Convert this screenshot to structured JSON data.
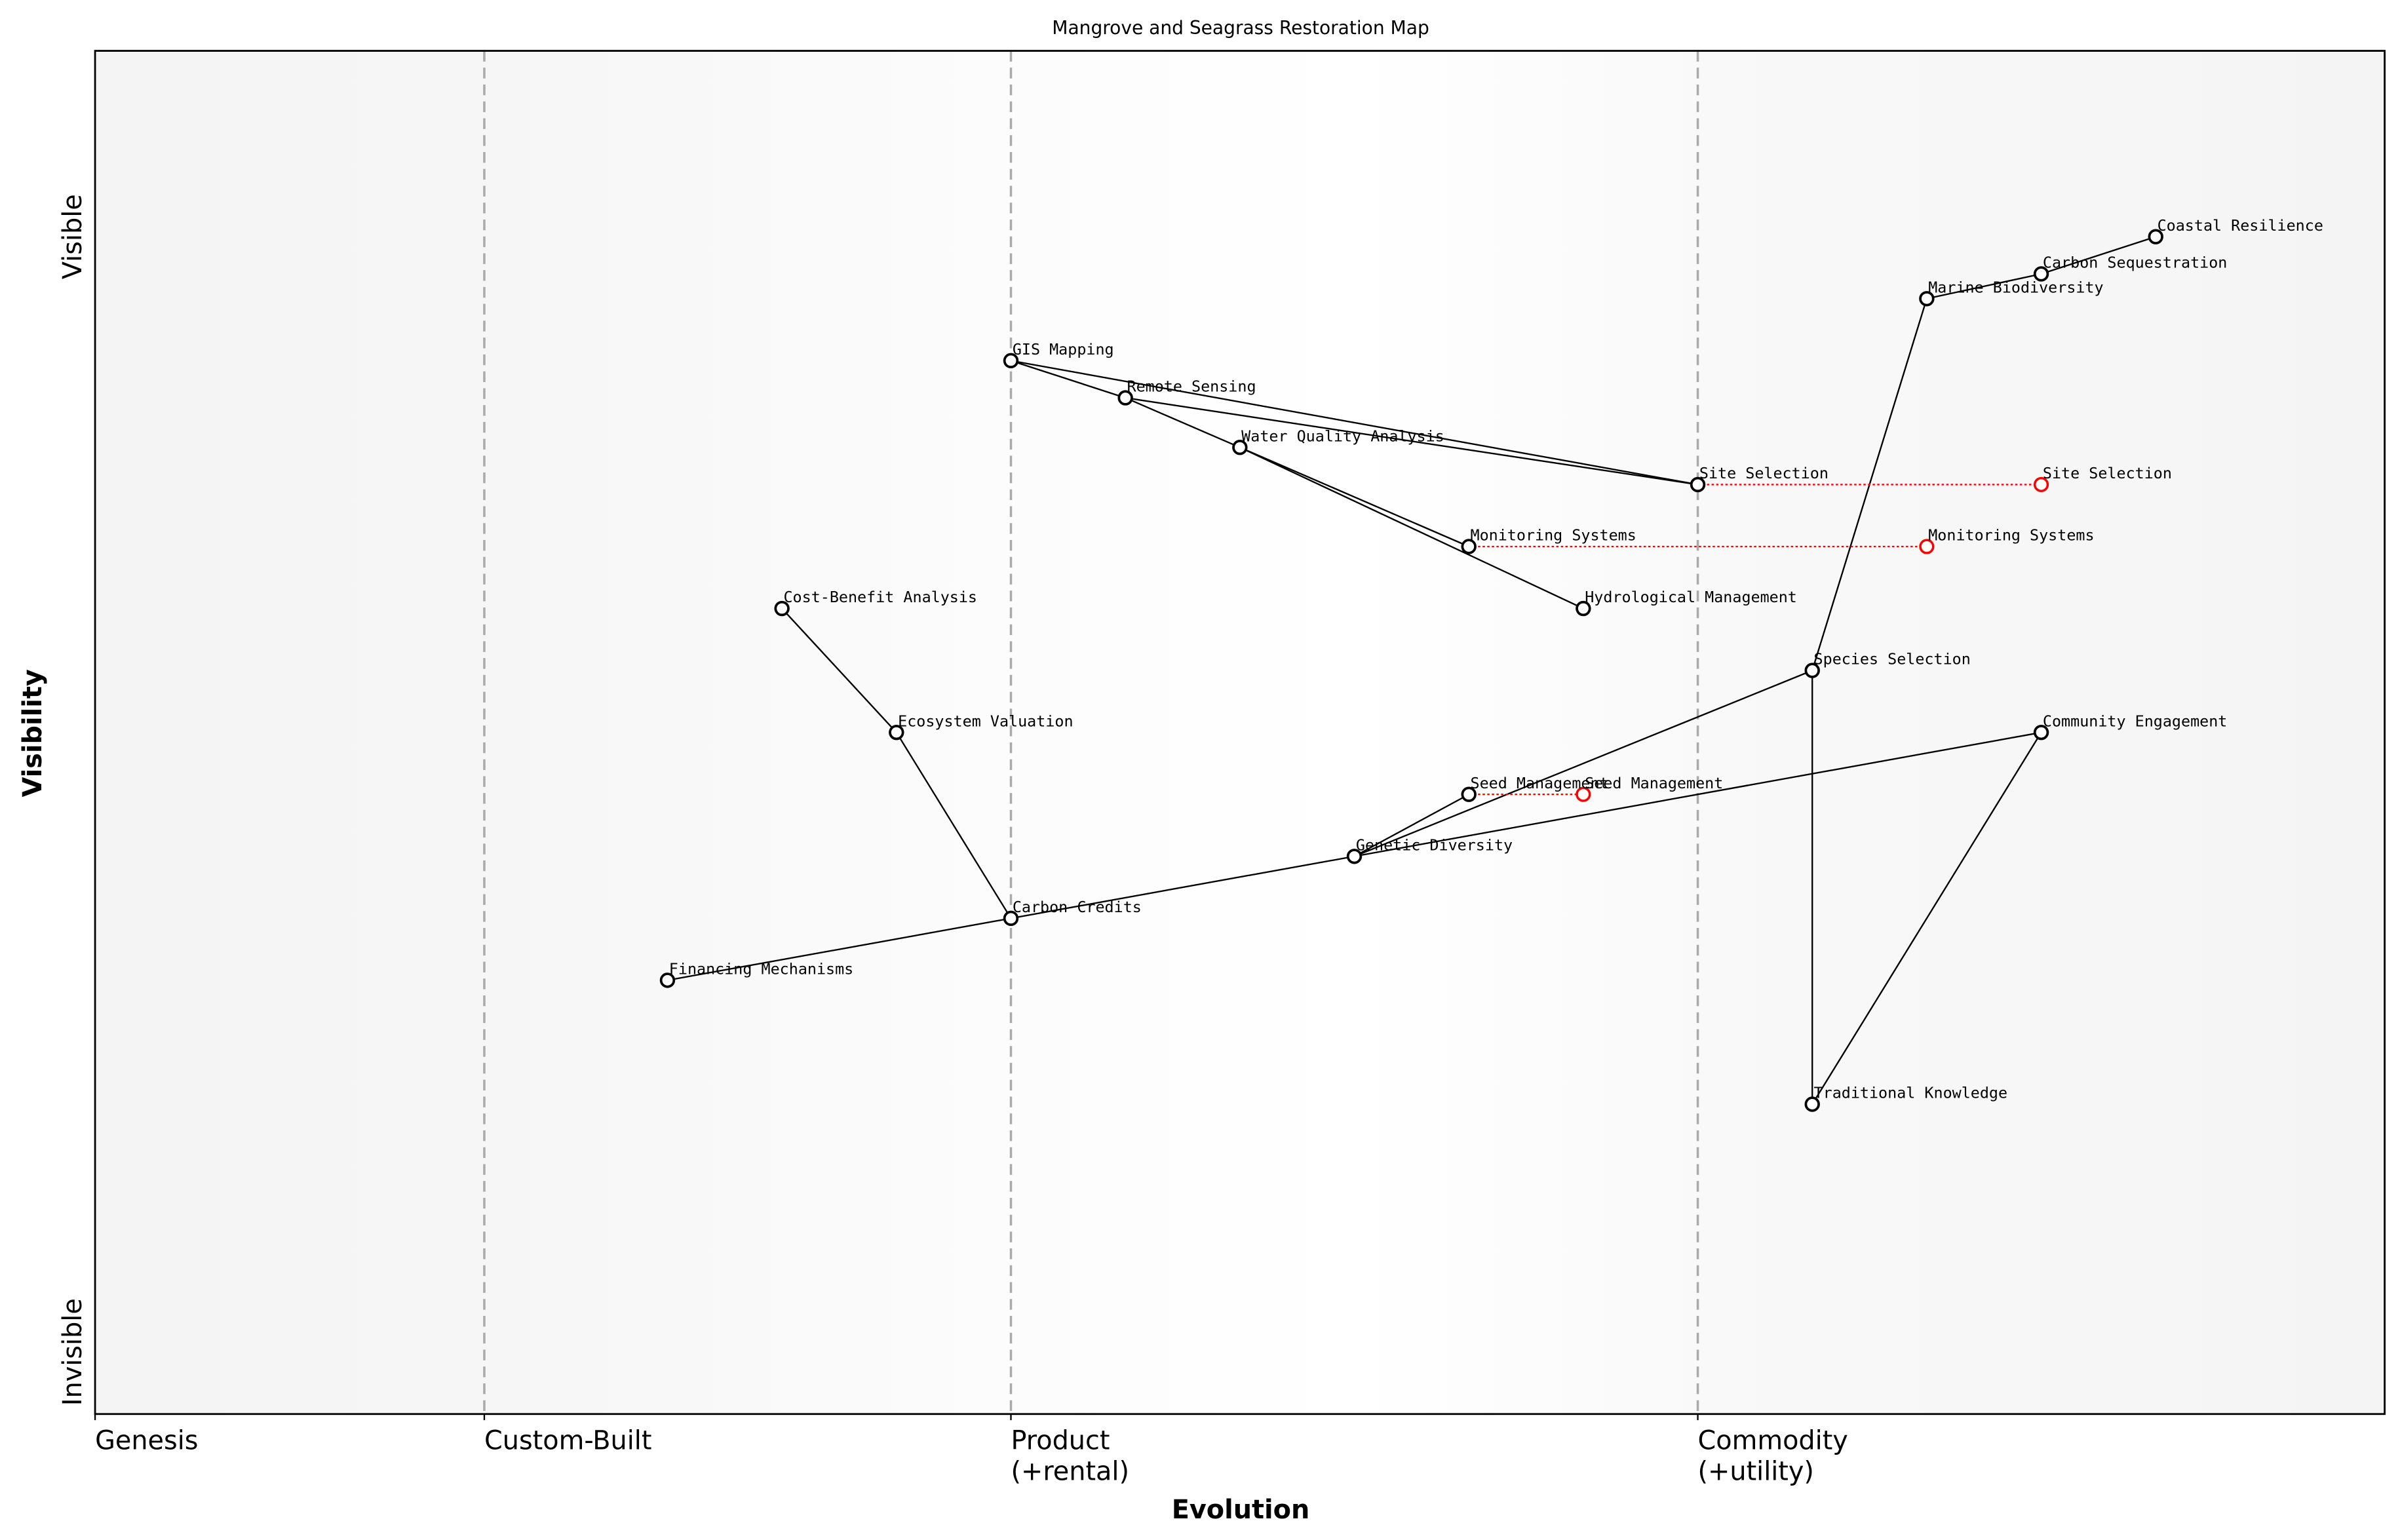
{
  "title": "Mangrove and Seagrass Restoration Map",
  "chart_data": {
    "type": "wardley-map",
    "title": "Mangrove and Seagrass Restoration Map",
    "xlabel": "Evolution",
    "ylabel": "Visibility",
    "xlim": [
      0,
      1
    ],
    "ylim": [
      -0.05,
      1.05
    ],
    "x_ticks": [
      {
        "value": 0,
        "label": [
          "Genesis"
        ]
      },
      {
        "value": 0.17,
        "label": [
          "Custom-Built"
        ]
      },
      {
        "value": 0.4,
        "label": [
          "Product",
          "(+rental)"
        ]
      },
      {
        "value": 0.7,
        "label": [
          "Commodity",
          "(+utility)"
        ]
      }
    ],
    "y_ticks": [
      {
        "value": 0.9,
        "label": "Visible"
      },
      {
        "value": 0.0,
        "label": "Invisible"
      }
    ],
    "stage_dividers": [
      0.17,
      0.4,
      0.7
    ],
    "components": [
      {
        "name": "Coastal Resilience",
        "x": 0.9,
        "y": 0.9
      },
      {
        "name": "Carbon Sequestration",
        "x": 0.85,
        "y": 0.87
      },
      {
        "name": "Marine Biodiversity",
        "x": 0.8,
        "y": 0.85
      },
      {
        "name": "GIS Mapping",
        "x": 0.4,
        "y": 0.8
      },
      {
        "name": "Remote Sensing",
        "x": 0.45,
        "y": 0.77
      },
      {
        "name": "Water Quality Analysis",
        "x": 0.5,
        "y": 0.73
      },
      {
        "name": "Site Selection",
        "x": 0.7,
        "y": 0.7
      },
      {
        "name": "Monitoring Systems",
        "x": 0.6,
        "y": 0.65
      },
      {
        "name": "Cost-Benefit Analysis",
        "x": 0.3,
        "y": 0.6
      },
      {
        "name": "Hydrological Management",
        "x": 0.65,
        "y": 0.6
      },
      {
        "name": "Species Selection",
        "x": 0.75,
        "y": 0.55
      },
      {
        "name": "Ecosystem Valuation",
        "x": 0.35,
        "y": 0.5
      },
      {
        "name": "Community Engagement",
        "x": 0.85,
        "y": 0.5
      },
      {
        "name": "Seed Management",
        "x": 0.6,
        "y": 0.45
      },
      {
        "name": "Genetic Diversity",
        "x": 0.55,
        "y": 0.4
      },
      {
        "name": "Carbon Credits",
        "x": 0.4,
        "y": 0.35
      },
      {
        "name": "Financing Mechanisms",
        "x": 0.25,
        "y": 0.3
      },
      {
        "name": "Traditional Knowledge",
        "x": 0.75,
        "y": 0.2
      }
    ],
    "evolutions": [
      {
        "name": "Site Selection",
        "from_x": 0.7,
        "to_x": 0.85,
        "y": 0.7
      },
      {
        "name": "Monitoring Systems",
        "from_x": 0.6,
        "to_x": 0.8,
        "y": 0.65
      },
      {
        "name": "Seed Management",
        "from_x": 0.6,
        "to_x": 0.65,
        "y": 0.45
      }
    ],
    "links": [
      [
        "Coastal Resilience",
        "Carbon Sequestration"
      ],
      [
        "Carbon Sequestration",
        "Marine Biodiversity"
      ],
      [
        "Marine Biodiversity",
        "Species Selection"
      ],
      [
        "Species Selection",
        "Traditional Knowledge"
      ],
      [
        "Traditional Knowledge",
        "Community Engagement"
      ],
      [
        "Community Engagement",
        "Genetic Diversity"
      ],
      [
        "Species Selection",
        "Genetic Diversity"
      ],
      [
        "Genetic Diversity",
        "Seed Management"
      ],
      [
        "Genetic Diversity",
        "Carbon Credits"
      ],
      [
        "Carbon Credits",
        "Financing Mechanisms"
      ],
      [
        "Carbon Credits",
        "Ecosystem Valuation"
      ],
      [
        "Ecosystem Valuation",
        "Cost-Benefit Analysis"
      ],
      [
        "GIS Mapping",
        "Remote Sensing"
      ],
      [
        "GIS Mapping",
        "Site Selection"
      ],
      [
        "Remote Sensing",
        "Site Selection"
      ],
      [
        "Remote Sensing",
        "Water Quality Analysis"
      ],
      [
        "Water Quality Analysis",
        "Monitoring Systems"
      ],
      [
        "Water Quality Analysis",
        "Hydrological Management"
      ]
    ],
    "colors": {
      "component": "#000000",
      "evolution": "#ff0000",
      "divider": "#aaaaaa",
      "band_edge": "#f4f4f4"
    }
  }
}
